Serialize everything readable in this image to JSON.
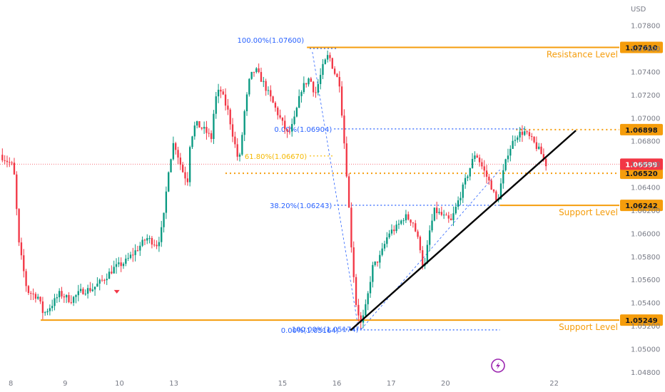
{
  "currency": "USD",
  "chart_data": {
    "type": "candlestick",
    "y_axis": {
      "ylim": [
        1.0475,
        1.0802
      ],
      "ticks": [
        "1.07800",
        "1.07600",
        "1.07400",
        "1.07200",
        "1.07000",
        "1.06800",
        "1.06600",
        "1.06400",
        "1.06200",
        "1.06000",
        "1.05800",
        "1.05600",
        "1.05400",
        "1.05200",
        "1.05000",
        "1.04800"
      ],
      "tick_values": [
        1.078,
        1.076,
        1.074,
        1.072,
        1.07,
        1.068,
        1.066,
        1.064,
        1.062,
        1.06,
        1.058,
        1.056,
        1.054,
        1.052,
        1.05,
        1.048
      ]
    },
    "x_axis": {
      "labels": [
        {
          "label": "8",
          "t": 8
        },
        {
          "label": "9",
          "t": 9
        },
        {
          "label": "10",
          "t": 10
        },
        {
          "label": "13",
          "t": 11
        },
        {
          "label": "15",
          "t": 13
        },
        {
          "label": "16",
          "t": 14
        },
        {
          "label": "17",
          "t": 15
        },
        {
          "label": "20",
          "t": 16
        },
        {
          "label": "22",
          "t": 18
        }
      ],
      "xlim": [
        7.8,
        19.2
      ]
    },
    "price_path": [
      [
        7.8,
        1.0668
      ],
      [
        8.05,
        1.0658
      ],
      [
        8.15,
        1.059
      ],
      [
        8.3,
        1.055
      ],
      [
        8.5,
        1.0545
      ],
      [
        8.6,
        1.053
      ],
      [
        8.75,
        1.0538
      ],
      [
        8.9,
        1.0548
      ],
      [
        9.1,
        1.0542
      ],
      [
        9.3,
        1.055
      ],
      [
        9.5,
        1.0552
      ],
      [
        9.7,
        1.056
      ],
      [
        9.9,
        1.057
      ],
      [
        10.1,
        1.0575
      ],
      [
        10.3,
        1.0585
      ],
      [
        10.5,
        1.0596
      ],
      [
        10.7,
        1.059
      ],
      [
        10.8,
        1.0608
      ],
      [
        10.9,
        1.0655
      ],
      [
        11.0,
        1.068
      ],
      [
        11.15,
        1.0655
      ],
      [
        11.25,
        1.0645
      ],
      [
        11.3,
        1.068
      ],
      [
        11.4,
        1.0695
      ],
      [
        11.55,
        1.069
      ],
      [
        11.7,
        1.0682
      ],
      [
        11.75,
        1.0715
      ],
      [
        11.85,
        1.0725
      ],
      [
        12.0,
        1.0705
      ],
      [
        12.1,
        1.0682
      ],
      [
        12.2,
        1.066
      ],
      [
        12.3,
        1.0705
      ],
      [
        12.4,
        1.0735
      ],
      [
        12.5,
        1.0742
      ],
      [
        12.65,
        1.073
      ],
      [
        12.8,
        1.0715
      ],
      [
        12.95,
        1.07
      ],
      [
        13.1,
        1.0685
      ],
      [
        13.2,
        1.0695
      ],
      [
        13.35,
        1.0725
      ],
      [
        13.5,
        1.0735
      ],
      [
        13.6,
        1.072
      ],
      [
        13.75,
        1.0745
      ],
      [
        13.85,
        1.0755
      ],
      [
        13.95,
        1.074
      ],
      [
        14.05,
        1.073
      ],
      [
        14.1,
        1.07
      ],
      [
        14.2,
        1.064
      ],
      [
        14.25,
        1.06
      ],
      [
        14.35,
        1.054
      ],
      [
        14.45,
        1.052
      ],
      [
        14.55,
        1.054
      ],
      [
        14.65,
        1.057
      ],
      [
        14.8,
        1.058
      ],
      [
        14.95,
        1.06
      ],
      [
        15.1,
        1.0605
      ],
      [
        15.25,
        1.0615
      ],
      [
        15.4,
        1.061
      ],
      [
        15.55,
        1.0585
      ],
      [
        15.6,
        1.0565
      ],
      [
        15.7,
        1.06
      ],
      [
        15.8,
        1.062
      ],
      [
        15.95,
        1.0615
      ],
      [
        16.1,
        1.061
      ],
      [
        16.25,
        1.063
      ],
      [
        16.4,
        1.065
      ],
      [
        16.55,
        1.067
      ],
      [
        16.65,
        1.066
      ],
      [
        16.75,
        1.065
      ],
      [
        16.85,
        1.064
      ],
      [
        16.95,
        1.0625
      ],
      [
        17.05,
        1.065
      ],
      [
        17.15,
        1.067
      ],
      [
        17.3,
        1.0685
      ],
      [
        17.45,
        1.0688
      ],
      [
        17.6,
        1.068
      ],
      [
        17.75,
        1.067
      ],
      [
        17.85,
        1.06599
      ]
    ],
    "levels": [
      {
        "name": "resistance",
        "value": 1.0761,
        "label": "Resistance Level",
        "tag": "1.07610",
        "style": "solid",
        "t_start": 13.45
      },
      {
        "name": "support-upper",
        "value": 1.06242,
        "label": "Support Level",
        "tag": "1.06242",
        "style": "solid",
        "t_start": 17.0
      },
      {
        "name": "support-lower",
        "value": 1.05249,
        "label": "Support Level",
        "tag": "1.05249",
        "style": "solid",
        "t_start": 8.55
      },
      {
        "name": "recent-high",
        "value": 1.06898,
        "label": "",
        "tag": "1.06898",
        "style": "dotted",
        "t_start": 17.3
      },
      {
        "name": "level-06520",
        "value": 1.0652,
        "label": "",
        "tag": "1.06520",
        "style": "dotted",
        "t_start": 11.95
      }
    ],
    "current_price": {
      "value": 1.06599,
      "tag": "1.06599"
    },
    "fibonacci": [
      {
        "name": "fib-100-top",
        "label": "100.00%(1.07600)",
        "value": 1.076,
        "color": "#2962ff"
      },
      {
        "name": "fib-618",
        "label": "61.80%(1.06670)",
        "value": 1.0667,
        "color": "#f5b800"
      },
      {
        "name": "fib-0-mid",
        "label": "0.00%(1.06904)",
        "value": 1.06904,
        "color": "#2962ff"
      },
      {
        "name": "fib-382",
        "label": "38.20%(1.06243)",
        "value": 1.06243,
        "color": "#2962ff"
      },
      {
        "name": "fib-0-bottom",
        "label": "0.00%(1.05164)",
        "value": 1.05164,
        "color": "#2962ff"
      },
      {
        "name": "fib-100-bottom",
        "label": "100.00%(1.05174)",
        "value": 1.05174,
        "color": "#2962ff"
      }
    ],
    "trendline": {
      "from": [
        14.25,
        1.0516
      ],
      "to": [
        18.4,
        1.0689
      ]
    },
    "colors": {
      "up": "#089981",
      "down": "#f23645",
      "level": "#f59d0c",
      "fib_blue": "#2962ff",
      "fib_gold": "#f5b800",
      "price_tag": "#f23645"
    }
  }
}
